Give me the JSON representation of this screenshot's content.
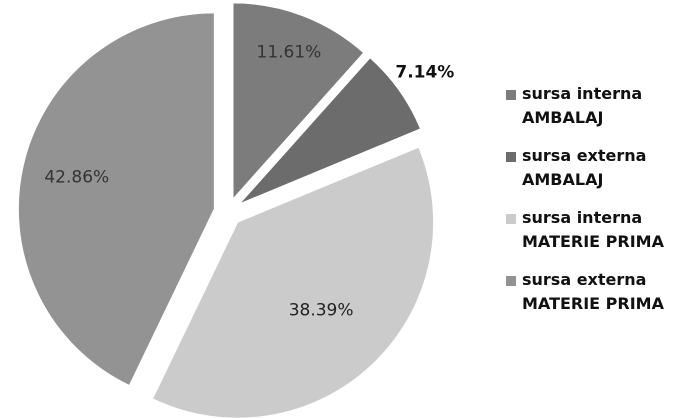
{
  "chart_data": {
    "type": "pie",
    "categories": [
      "sursa interna\nAMBALAJ",
      "sursa externa\nAMBALAJ",
      "sursa interna\nMATERIE PRIMA",
      "sursa externa\nMATERIE PRIMA"
    ],
    "values": [
      11.61,
      7.14,
      38.39,
      42.86
    ],
    "value_labels": [
      "11.61%",
      "7.14%",
      "38.39%",
      "42.86%"
    ],
    "colors": [
      "#7c7c7c",
      "#6c6c6c",
      "#cbcbcb",
      "#939393"
    ],
    "legend": "right"
  }
}
